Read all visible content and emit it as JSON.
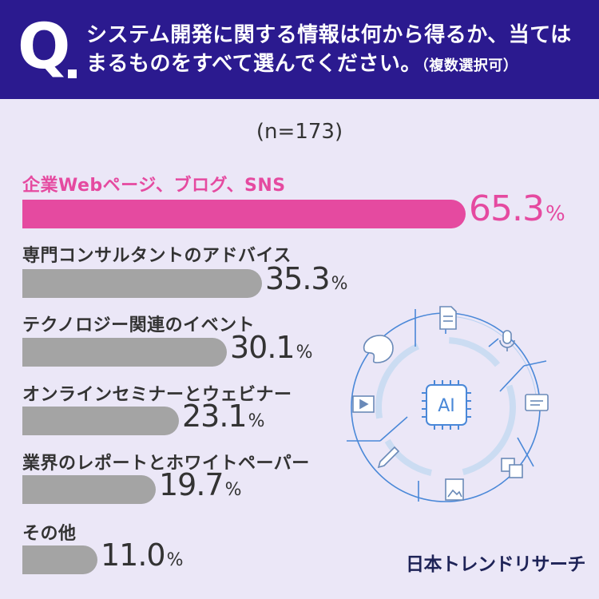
{
  "header": {
    "q_mark": "Q",
    "question_line1": "システム開発に関する情報は何から得るか、当ては",
    "question_line2": "まるものをすべて選んでください。",
    "question_note": "（複数選択可）"
  },
  "sample_size": "(n=173)",
  "chart_data": {
    "type": "bar",
    "orientation": "horizontal",
    "categories": [
      "企業Webページ、ブログ、SNS",
      "専門コンサルタントのアドバイス",
      "テクノロジー関連のイベント",
      "オンラインセミナーとウェビナー",
      "業界のレポートとホワイトペーパー",
      "その他"
    ],
    "values": [
      65.3,
      35.3,
      30.1,
      23.1,
      19.7,
      11.0
    ],
    "value_labels": [
      "65.3",
      "35.3",
      "30.1",
      "23.1",
      "19.7",
      "11.0"
    ],
    "unit": "%",
    "xlim": [
      0,
      100
    ],
    "highlight_index": 0,
    "colors": {
      "highlight": "#e54aa0",
      "default": "#a4a4a4"
    }
  },
  "illustration": {
    "chip_label": "AI",
    "icons": [
      "document-icon",
      "microphone-icon",
      "chat-icon",
      "translate-icon",
      "image-icon",
      "pencil-icon",
      "video-play-icon",
      "palette-icon"
    ]
  },
  "logo": "日本トレンドリサーチ",
  "colors": {
    "header_bg": "#2b1a8f",
    "page_bg": "#ebe7f7",
    "accent": "#e54aa0",
    "bar_gray": "#a4a4a4",
    "illustration_blue": "#4a88d8"
  }
}
